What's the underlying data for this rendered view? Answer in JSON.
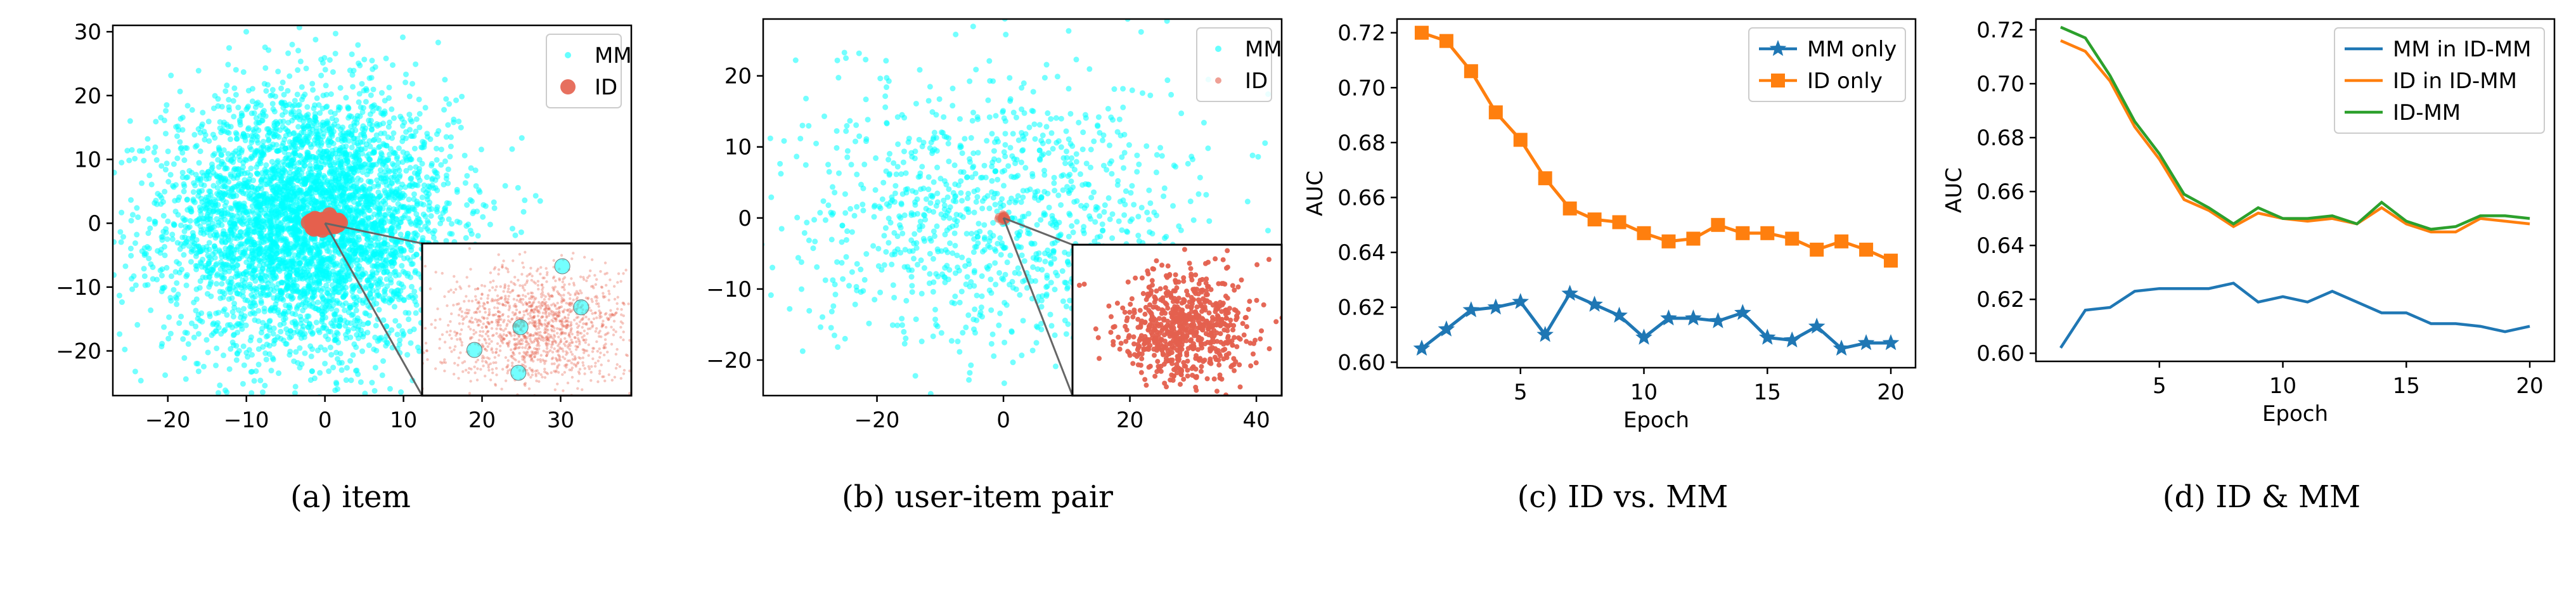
{
  "chart_data": [
    {
      "type": "scatter",
      "caption": "(a)  item",
      "xlim": [
        -27,
        39
      ],
      "ylim": [
        -27,
        31
      ],
      "xticks": [
        -20,
        -10,
        0,
        10,
        20,
        30
      ],
      "yticks": [
        -20,
        -10,
        0,
        10,
        20,
        30
      ],
      "xlabel": "",
      "ylabel": "",
      "legend_position": "top-right",
      "series": [
        {
          "name": "MM",
          "color": "#00ffff",
          "marker": "dot",
          "cloud": {
            "center": [
              -2,
              0
            ],
            "spread": [
              9,
              10
            ],
            "count": 4500
          }
        },
        {
          "name": "ID",
          "color": "#e4604e",
          "marker": "circle",
          "cloud": {
            "center": [
              0,
              0
            ],
            "spread": [
              0.8,
              0.4
            ],
            "count": 150
          }
        }
      ],
      "inset": {
        "zoom_of": [
          0,
          0
        ],
        "shows": [
          "ID",
          "MM"
        ]
      }
    },
    {
      "type": "scatter",
      "caption": "(b)  user-item pair",
      "xlim": [
        -38,
        44
      ],
      "ylim": [
        -25,
        28
      ],
      "xticks": [
        -20,
        0,
        20,
        40
      ],
      "yticks": [
        -20,
        -10,
        0,
        10,
        20
      ],
      "xlabel": "",
      "ylabel": "",
      "legend_position": "top-right",
      "series": [
        {
          "name": "MM",
          "color": "#00ffff",
          "marker": "dot",
          "cloud": {
            "center": [
              0,
              0
            ],
            "spread": [
              16,
              10
            ],
            "count": 1100
          }
        },
        {
          "name": "ID",
          "color": "#e4604e",
          "marker": "dot",
          "cloud": {
            "center": [
              0,
              0
            ],
            "spread": [
              0.3,
              0.3
            ],
            "count": 30
          }
        }
      ],
      "inset": {
        "zoom_of": [
          0,
          0
        ],
        "shows": [
          "ID"
        ]
      }
    },
    {
      "type": "line",
      "caption": "(c)  ID vs. MM",
      "xlabel": "Epoch",
      "ylabel": "AUC",
      "xlim": [
        0,
        21
      ],
      "ylim": [
        0.598,
        0.725
      ],
      "xticks": [
        5,
        10,
        15,
        20
      ],
      "yticks": [
        0.6,
        0.62,
        0.64,
        0.66,
        0.68,
        0.7,
        0.72
      ],
      "legend_position": "top-right",
      "x": [
        1,
        2,
        3,
        4,
        5,
        6,
        7,
        8,
        9,
        10,
        11,
        12,
        13,
        14,
        15,
        16,
        17,
        18,
        19,
        20
      ],
      "series": [
        {
          "name": "MM only",
          "color": "#1f77b4",
          "marker": "star",
          "values": [
            0.605,
            0.612,
            0.619,
            0.62,
            0.622,
            0.61,
            0.625,
            0.621,
            0.617,
            0.609,
            0.616,
            0.616,
            0.615,
            0.618,
            0.609,
            0.608,
            0.613,
            0.605,
            0.607,
            0.607
          ]
        },
        {
          "name": "ID only",
          "color": "#ff7f0e",
          "marker": "square",
          "values": [
            0.72,
            0.717,
            0.706,
            0.691,
            0.681,
            0.667,
            0.656,
            0.652,
            0.651,
            0.647,
            0.644,
            0.645,
            0.65,
            0.647,
            0.647,
            0.645,
            0.641,
            0.644,
            0.641,
            0.637
          ]
        }
      ]
    },
    {
      "type": "line",
      "caption": "(d)  ID & MM",
      "xlabel": "Epoch",
      "ylabel": "AUC",
      "xlim": [
        0,
        21
      ],
      "ylim": [
        0.597,
        0.724
      ],
      "xticks": [
        5,
        10,
        15,
        20
      ],
      "yticks": [
        0.6,
        0.62,
        0.64,
        0.66,
        0.68,
        0.7,
        0.72
      ],
      "legend_position": "top-right",
      "x": [
        1,
        2,
        3,
        4,
        5,
        6,
        7,
        8,
        9,
        10,
        11,
        12,
        13,
        14,
        15,
        16,
        17,
        18,
        19,
        20
      ],
      "series": [
        {
          "name": "MM in ID-MM",
          "color": "#1f77b4",
          "values": [
            0.602,
            0.616,
            0.617,
            0.623,
            0.624,
            0.624,
            0.624,
            0.626,
            0.619,
            0.621,
            0.619,
            0.623,
            0.619,
            0.615,
            0.615,
            0.611,
            0.611,
            0.61,
            0.608,
            0.61
          ]
        },
        {
          "name": "ID in ID-MM",
          "color": "#ff7f0e",
          "values": [
            0.716,
            0.712,
            0.701,
            0.684,
            0.672,
            0.657,
            0.653,
            0.647,
            0.652,
            0.65,
            0.649,
            0.65,
            0.648,
            0.654,
            0.648,
            0.645,
            0.645,
            0.65,
            0.649,
            0.648
          ]
        },
        {
          "name": "ID-MM",
          "color": "#2ca02c",
          "values": [
            0.721,
            0.717,
            0.703,
            0.686,
            0.674,
            0.659,
            0.654,
            0.648,
            0.654,
            0.65,
            0.65,
            0.651,
            0.648,
            0.656,
            0.649,
            0.646,
            0.647,
            0.651,
            0.651,
            0.65
          ]
        }
      ]
    }
  ]
}
